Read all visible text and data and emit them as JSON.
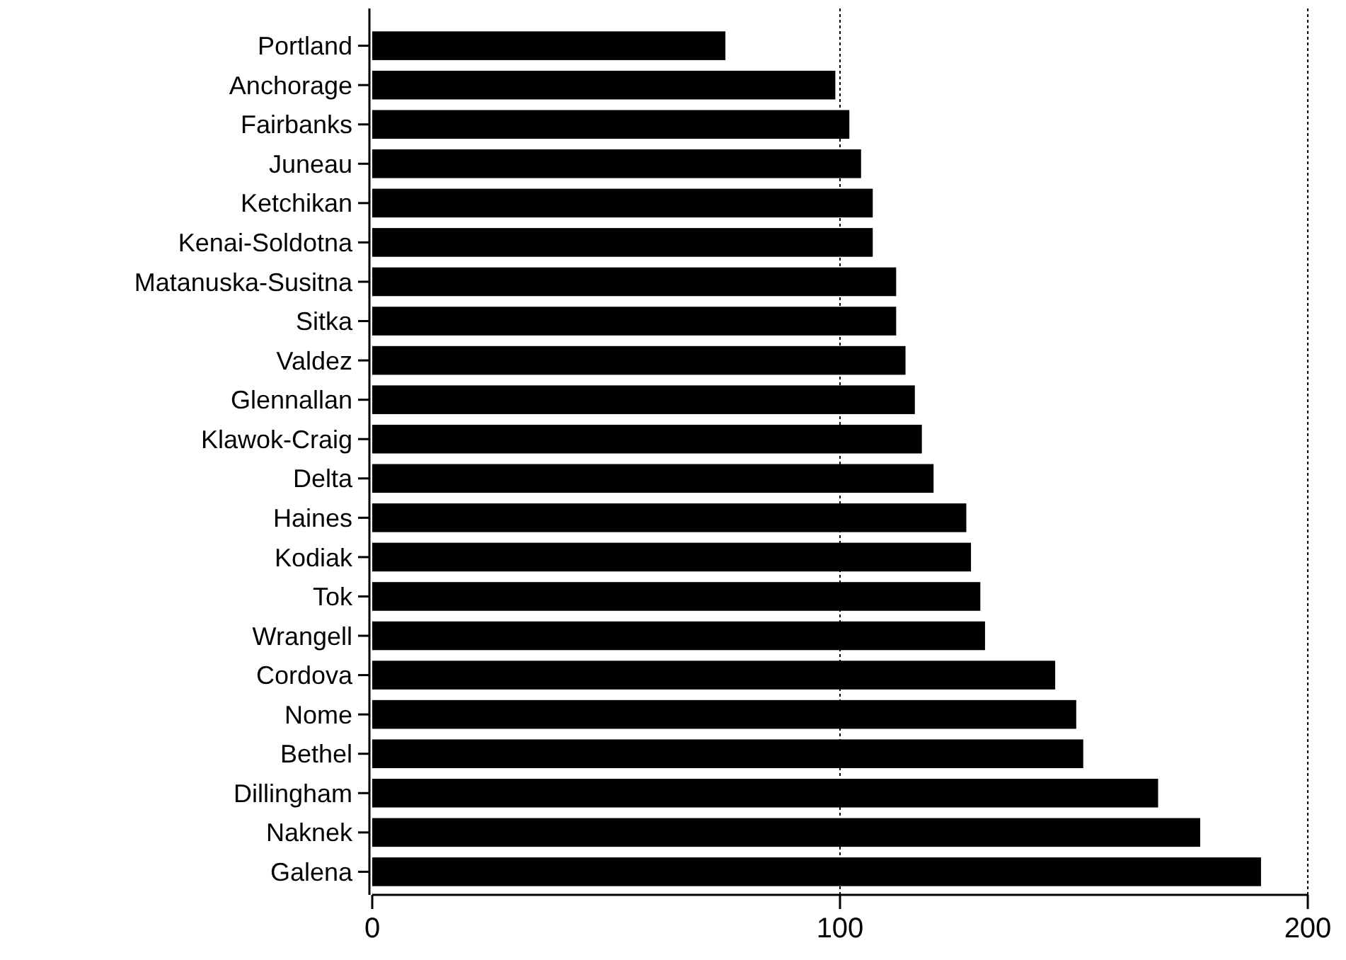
{
  "chart_data": {
    "type": "bar",
    "orientation": "horizontal",
    "categories": [
      "Portland",
      "Anchorage",
      "Fairbanks",
      "Juneau",
      "Ketchikan",
      "Kenai-Soldotna",
      "Matanuska-Susitna",
      "Sitka",
      "Valdez",
      "Glennallan",
      "Klawok-Craig",
      "Delta",
      "Haines",
      "Kodiak",
      "Tok",
      "Wrangell",
      "Cordova",
      "Nome",
      "Bethel",
      "Dillingham",
      "Naknek",
      "Galena"
    ],
    "values": [
      75.5,
      99,
      102,
      104.5,
      107,
      107,
      112,
      112,
      114,
      116,
      117.5,
      120,
      127,
      128,
      130,
      131,
      146,
      150.5,
      152,
      168,
      177,
      190
    ],
    "color": "#000000",
    "xlim": [
      0,
      200
    ],
    "xticks": [
      0,
      100,
      200
    ],
    "grid": "x"
  }
}
